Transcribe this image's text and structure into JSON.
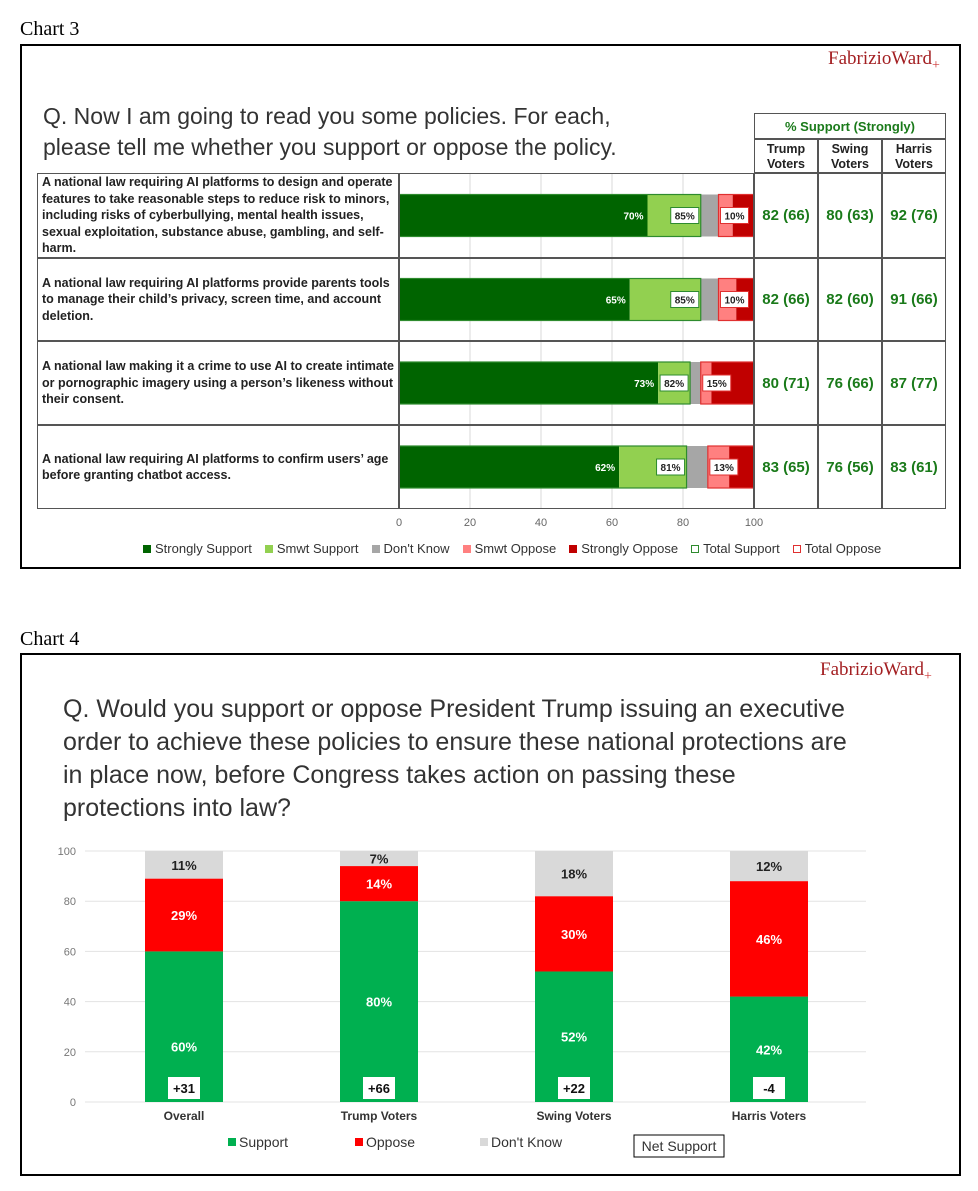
{
  "chart3": {
    "label": "Chart 3",
    "logo": "FabrizioWard",
    "logo_mark": "+",
    "question": "Q. Now I am going to read you some policies. For each, please tell me whether you support or oppose the policy.",
    "table_header": "% Support (Strongly)",
    "columns": [
      "Trump Voters",
      "Swing Voters",
      "Harris Voters"
    ]
  },
  "chart4": {
    "label": "Chart 4",
    "logo": "FabrizioWard",
    "logo_mark": "+",
    "question": "Q. Would you support or oppose President Trump issuing an executive order to achieve these policies to ensure these national protections are in place now, before Congress takes action on passing these protections into law?"
  },
  "chart_data": [
    {
      "type": "bar",
      "orientation": "horizontal",
      "stacked": true,
      "categories": [
        "A national law requiring AI platforms to design and operate features to take reasonable steps to reduce risk to minors, including risks of cyberbullying, mental health issues, sexual exploitation, substance abuse, gambling, and self-harm.",
        "A national law requiring AI platforms provide parents tools to manage their child’s privacy, screen time, and account deletion.",
        "A national law making it a crime to use AI to create intimate or pornographic imagery using a person’s likeness without their consent.",
        "A national law requiring AI platforms to confirm users’ age before granting chatbot access."
      ],
      "series": [
        {
          "name": "Strongly Support",
          "color": "#006400",
          "values": [
            70,
            65,
            73,
            62
          ]
        },
        {
          "name": "Smwt Support",
          "color": "#92d050",
          "values": [
            15,
            20,
            9,
            19
          ]
        },
        {
          "name": "Don't Know",
          "color": "#a6a6a6",
          "values": [
            5,
            5,
            3,
            6
          ]
        },
        {
          "name": "Smwt Oppose",
          "color": "#ff8080",
          "values": [
            4,
            5,
            3,
            6
          ]
        },
        {
          "name": "Strongly Oppose",
          "color": "#c00000",
          "values": [
            6,
            5,
            12,
            7
          ]
        }
      ],
      "strong_labels": [
        "70%",
        "65%",
        "73%",
        "62%"
      ],
      "total_support": [
        "85%",
        "85%",
        "82%",
        "81%"
      ],
      "total_oppose": [
        "10%",
        "10%",
        "15%",
        "13%"
      ],
      "legend": [
        "Strongly Support",
        "Smwt Support",
        "Don't Know",
        "Smwt Oppose",
        "Strongly Oppose",
        "Total Support",
        "Total Oppose"
      ],
      "xticks": [
        "0",
        "20",
        "40",
        "60",
        "80",
        "100"
      ],
      "xlim": [
        0,
        100
      ],
      "table": [
        [
          "82 (66)",
          "80 (63)",
          "92 (76)"
        ],
        [
          "82 (66)",
          "82 (60)",
          "91 (66)"
        ],
        [
          "80 (71)",
          "76 (66)",
          "87 (77)"
        ],
        [
          "83 (65)",
          "76 (56)",
          "83 (61)"
        ]
      ]
    },
    {
      "type": "bar",
      "orientation": "vertical",
      "stacked": true,
      "categories": [
        "Overall",
        "Trump Voters",
        "Swing Voters",
        "Harris Voters"
      ],
      "series": [
        {
          "name": "Support",
          "color": "#00b050",
          "values": [
            60,
            80,
            52,
            42
          ]
        },
        {
          "name": "Oppose",
          "color": "#ff0000",
          "values": [
            29,
            14,
            30,
            46
          ]
        },
        {
          "name": "Don't Know",
          "color": "#d9d9d9",
          "values": [
            11,
            7,
            18,
            12
          ]
        }
      ],
      "net_support": [
        "+31",
        "+66",
        "+22",
        "-4"
      ],
      "net_label": "Net Support",
      "yticks": [
        "0",
        "20",
        "40",
        "60",
        "80",
        "100"
      ],
      "ylim": [
        0,
        100
      ]
    }
  ]
}
